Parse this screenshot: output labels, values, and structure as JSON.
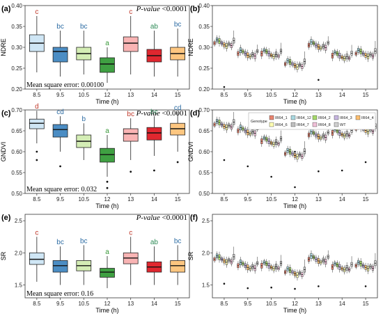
{
  "figure": {
    "time_label": "Time (h)",
    "p_value_label": "P-value",
    "p_value_text": "<0.0001",
    "legend_title": "Genotype",
    "genotypes": [
      {
        "name": "IR64_1",
        "color": "#e8836f"
      },
      {
        "name": "IR64_12",
        "color": "#a8d8e0"
      },
      {
        "name": "IR64_2",
        "color": "#a6d96a"
      },
      {
        "name": "IR64_3",
        "color": "#c6b5e0"
      },
      {
        "name": "IR64_4",
        "color": "#fdbf6f"
      },
      {
        "name": "IR64_6",
        "color": "#ffffb3"
      },
      {
        "name": "IR64_7",
        "color": "#bfbfbf"
      },
      {
        "name": "IR64_8",
        "color": "#f0c0d8"
      },
      {
        "name": "WT",
        "color": "#d0d0d0"
      }
    ],
    "time_colors": [
      "#cfe6f5",
      "#4b8dc4",
      "#d4edb5",
      "#3fa042",
      "#f9b4b4",
      "#e0272f",
      "#fdc680"
    ]
  },
  "chart_data": [
    {
      "panel": "(a)",
      "type": "box",
      "ylabel": "NDRE",
      "categories": [
        "8.5",
        "9.5",
        "10.5",
        "12",
        "13",
        "14",
        "15"
      ],
      "ylim": [
        0.2,
        0.4
      ],
      "yticks": [
        0.2,
        0.25,
        0.3,
        0.35,
        0.4
      ],
      "boxes": [
        {
          "min": 0.24,
          "q1": 0.29,
          "median": 0.31,
          "q3": 0.33,
          "max": 0.375
        },
        {
          "min": 0.23,
          "q1": 0.265,
          "median": 0.29,
          "q3": 0.3,
          "max": 0.34
        },
        {
          "min": 0.235,
          "q1": 0.27,
          "median": 0.285,
          "q3": 0.3,
          "max": 0.34
        },
        {
          "min": 0.215,
          "q1": 0.24,
          "median": 0.26,
          "q3": 0.275,
          "max": 0.3
        },
        {
          "min": 0.235,
          "q1": 0.29,
          "median": 0.31,
          "q3": 0.325,
          "max": 0.375
        },
        {
          "min": 0.23,
          "q1": 0.265,
          "median": 0.28,
          "q3": 0.295,
          "max": 0.34
        },
        {
          "min": 0.23,
          "q1": 0.27,
          "median": 0.285,
          "q3": 0.3,
          "max": 0.345
        }
      ],
      "letters": [
        "c",
        "bc",
        "bc",
        "a",
        "c",
        "ab",
        "bc"
      ],
      "outliers": [],
      "note": "Mean square error: 0.00100"
    },
    {
      "panel": "(b)",
      "type": "box",
      "ylabel": "NDRE",
      "categories": [
        "8.5",
        "9.5",
        "10.5",
        "12",
        "13",
        "14",
        "15"
      ],
      "ylim": [
        0.2,
        0.4
      ],
      "yticks": [
        0.2,
        0.25,
        0.3,
        0.35,
        0.4
      ],
      "group_centers": [
        0.31,
        0.285,
        0.285,
        0.26,
        0.305,
        0.28,
        0.285
      ],
      "outliers": [
        {
          "group": 0,
          "value": 0.205
        },
        {
          "group": 4,
          "value": 0.222
        }
      ]
    },
    {
      "panel": "(c)",
      "type": "box",
      "ylabel": "GNDVI",
      "categories": [
        "8.5",
        "9.5",
        "10.5",
        "12",
        "13",
        "14",
        "15"
      ],
      "ylim": [
        0.5,
        0.7
      ],
      "yticks": [
        0.5,
        0.55,
        0.6,
        0.65,
        0.7
      ],
      "boxes": [
        {
          "min": 0.62,
          "q1": 0.655,
          "median": 0.668,
          "q3": 0.678,
          "max": 0.698
        },
        {
          "min": 0.6,
          "q1": 0.635,
          "median": 0.653,
          "q3": 0.665,
          "max": 0.685
        },
        {
          "min": 0.58,
          "q1": 0.61,
          "median": 0.625,
          "q3": 0.64,
          "max": 0.668
        },
        {
          "min": 0.54,
          "q1": 0.575,
          "median": 0.593,
          "q3": 0.608,
          "max": 0.64
        },
        {
          "min": 0.58,
          "q1": 0.625,
          "median": 0.643,
          "q3": 0.655,
          "max": 0.68
        },
        {
          "min": 0.59,
          "q1": 0.628,
          "median": 0.645,
          "q3": 0.658,
          "max": 0.685
        },
        {
          "min": 0.6,
          "q1": 0.64,
          "median": 0.655,
          "q3": 0.668,
          "max": 0.695
        }
      ],
      "letters": [
        "d",
        "cd",
        "b",
        "a",
        "bc",
        "bc",
        "cd"
      ],
      "outliers": [
        {
          "group": 0,
          "value": 0.6
        },
        {
          "group": 0,
          "value": 0.58
        },
        {
          "group": 1,
          "value": 0.565
        },
        {
          "group": 3,
          "value": 0.528
        },
        {
          "group": 3,
          "value": 0.513
        },
        {
          "group": 4,
          "value": 0.552
        },
        {
          "group": 5,
          "value": 0.555
        },
        {
          "group": 6,
          "value": 0.575
        }
      ],
      "note": "Mean square error: 0.032"
    },
    {
      "panel": "(d)",
      "type": "box",
      "ylabel": "GNDVI",
      "categories": [
        "8.5",
        "9.5",
        "10.5",
        "12",
        "13",
        "14",
        "15"
      ],
      "ylim": [
        0.5,
        0.7
      ],
      "yticks": [
        0.5,
        0.55,
        0.6,
        0.65,
        0.7
      ],
      "group_centers": [
        0.665,
        0.65,
        0.625,
        0.595,
        0.64,
        0.645,
        0.655
      ],
      "outliers": [
        {
          "group": 0,
          "value": 0.58
        },
        {
          "group": 1,
          "value": 0.565
        },
        {
          "group": 2,
          "value": 0.54
        },
        {
          "group": 3,
          "value": 0.515
        },
        {
          "group": 3,
          "value": 0.6
        },
        {
          "group": 4,
          "value": 0.553
        },
        {
          "group": 5,
          "value": 0.555
        },
        {
          "group": 6,
          "value": 0.575
        }
      ]
    },
    {
      "panel": "(e)",
      "type": "box",
      "ylabel": "SR",
      "categories": [
        "8.5",
        "9.5",
        "10.5",
        "12",
        "13",
        "14",
        "15"
      ],
      "ylim": [
        1.3,
        2.6
      ],
      "yticks": [
        1.5,
        2.0,
        2.5
      ],
      "boxes": [
        {
          "min": 1.55,
          "q1": 1.82,
          "median": 1.9,
          "q3": 2.0,
          "max": 2.25
        },
        {
          "min": 1.5,
          "q1": 1.7,
          "median": 1.8,
          "q3": 1.88,
          "max": 2.1
        },
        {
          "min": 1.5,
          "q1": 1.72,
          "median": 1.8,
          "q3": 1.88,
          "max": 2.12
        },
        {
          "min": 1.45,
          "q1": 1.62,
          "median": 1.7,
          "q3": 1.76,
          "max": 1.95
        },
        {
          "min": 1.5,
          "q1": 1.83,
          "median": 1.92,
          "q3": 2.0,
          "max": 2.25
        },
        {
          "min": 1.5,
          "q1": 1.7,
          "median": 1.78,
          "q3": 1.86,
          "max": 2.1
        },
        {
          "min": 1.5,
          "q1": 1.7,
          "median": 1.8,
          "q3": 1.88,
          "max": 2.12
        }
      ],
      "letters": [
        "c",
        "bc",
        "bc",
        "a",
        "c",
        "ab",
        "bc"
      ],
      "outliers": [],
      "note": "Mean square error: 0.16"
    },
    {
      "panel": "(f)",
      "type": "box",
      "ylabel": "SR",
      "categories": [
        "8.5",
        "9.5",
        "10.5",
        "12",
        "13",
        "14",
        "15"
      ],
      "ylim": [
        1.3,
        2.6
      ],
      "yticks": [
        1.5,
        2.0,
        2.5
      ],
      "group_centers": [
        1.9,
        1.8,
        1.8,
        1.7,
        1.9,
        1.78,
        1.8
      ],
      "outliers": [
        {
          "group": 0,
          "value": 1.52
        },
        {
          "group": 1,
          "value": 1.45
        },
        {
          "group": 2,
          "value": 1.46
        },
        {
          "group": 3,
          "value": 1.44
        },
        {
          "group": 4,
          "value": 1.48
        },
        {
          "group": 6,
          "value": 1.48
        }
      ]
    }
  ]
}
